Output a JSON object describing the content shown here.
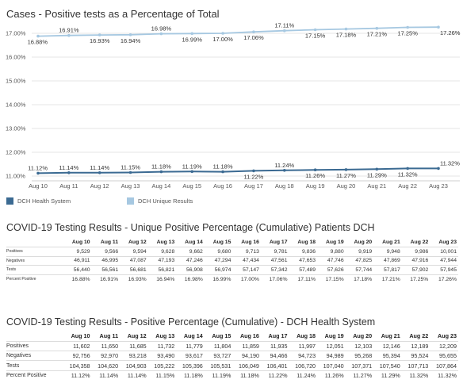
{
  "chart_data": {
    "type": "line",
    "title": "Cases - Positive tests as a Percentage of Total",
    "categories": [
      "Aug 10",
      "Aug 11",
      "Aug 12",
      "Aug 13",
      "Aug 14",
      "Aug 15",
      "Aug 16",
      "Aug 17",
      "Aug 18",
      "Aug 19",
      "Aug 20",
      "Aug 21",
      "Aug 22",
      "Aug 23"
    ],
    "yticks": [
      "17.00%",
      "16.00%",
      "15.00%",
      "14.00%",
      "13.00%",
      "12.00%",
      "11.00%"
    ],
    "series": [
      {
        "name": "DCH Unique Results",
        "color": "#a6c8e1",
        "values": [
          16.88,
          16.91,
          16.93,
          16.94,
          16.98,
          16.99,
          17.0,
          17.06,
          17.11,
          17.15,
          17.18,
          17.21,
          17.25,
          17.26
        ],
        "labels": [
          "16.88%",
          "16.91%",
          "16.93%",
          "16.94%",
          "16.98%",
          "16.99%",
          "17.00%",
          "17.06%",
          "17.11%",
          "17.15%",
          "17.18%",
          "17.21%",
          "17.25%",
          "17.26%"
        ]
      },
      {
        "name": "DCH Health System",
        "color": "#3b6a92",
        "values": [
          11.12,
          11.14,
          11.14,
          11.15,
          11.18,
          11.19,
          11.18,
          11.22,
          11.24,
          11.26,
          11.27,
          11.29,
          11.32,
          11.32
        ],
        "labels": [
          "11.12%",
          "11.14%",
          "11.14%",
          "11.15%",
          "11.18%",
          "11.19%",
          "11.18%",
          "11.22%",
          "11.24%",
          "11.26%",
          "11.27%",
          "11.29%",
          "11.32%",
          "11.32%"
        ]
      }
    ],
    "ylim": [
      10.8,
      17.4
    ],
    "legend_position": "bottom-left",
    "grid": true
  },
  "legend": {
    "health": "DCH Health System",
    "unique": "DCH Unique Results"
  },
  "table1": {
    "title": "COVID-19 Testing Results - Unique Positive Percentage (Cumulative) Patients DCH",
    "columns": [
      "Aug 10",
      "Aug 11",
      "Aug 12",
      "Aug 13",
      "Aug 14",
      "Aug 15",
      "Aug 16",
      "Aug 17",
      "Aug 18",
      "Aug 19",
      "Aug 20",
      "Aug 21",
      "Aug 22",
      "Aug 23"
    ],
    "rows": [
      {
        "label": "Positives",
        "values": [
          "9,529",
          "9,566",
          "9,594",
          "9,628",
          "9,662",
          "9,680",
          "9,713",
          "9,781",
          "9,836",
          "9,880",
          "9,919",
          "9,948",
          "9,986",
          "10,001"
        ]
      },
      {
        "label": "Negatives",
        "values": [
          "46,911",
          "46,995",
          "47,087",
          "47,193",
          "47,246",
          "47,294",
          "47,434",
          "47,561",
          "47,653",
          "47,746",
          "47,825",
          "47,869",
          "47,916",
          "47,944"
        ]
      },
      {
        "label": "Tests",
        "values": [
          "56,440",
          "56,561",
          "56,681",
          "56,821",
          "56,908",
          "56,974",
          "57,147",
          "57,342",
          "57,489",
          "57,626",
          "57,744",
          "57,817",
          "57,902",
          "57,945"
        ]
      },
      {
        "label": "Percent Positive",
        "values": [
          "16.88%",
          "16.91%",
          "16.93%",
          "16.94%",
          "16.98%",
          "16.99%",
          "17.00%",
          "17.06%",
          "17.11%",
          "17.15%",
          "17.18%",
          "17.21%",
          "17.25%",
          "17.26%"
        ]
      }
    ]
  },
  "table2": {
    "title": "COVID-19 Testing Results - Positive Percentage (Cumulative) - DCH Health System",
    "columns": [
      "Aug 10",
      "Aug 11",
      "Aug 12",
      "Aug 13",
      "Aug 14",
      "Aug 15",
      "Aug 16",
      "Aug 17",
      "Aug 18",
      "Aug 19",
      "Aug 20",
      "Aug 21",
      "Aug 22",
      "Aug 23"
    ],
    "rows": [
      {
        "label": "Positives",
        "values": [
          "11,602",
          "11,650",
          "11,685",
          "11,732",
          "11,779",
          "11,804",
          "11,859",
          "11,935",
          "11,997",
          "12,051",
          "12,103",
          "12,146",
          "12,189",
          "12,209"
        ]
      },
      {
        "label": "Negatives",
        "values": [
          "92,756",
          "92,970",
          "93,218",
          "93,490",
          "93,617",
          "93,727",
          "94,190",
          "94,466",
          "94,723",
          "94,989",
          "95,268",
          "95,394",
          "95,524",
          "95,655"
        ]
      },
      {
        "label": "Tests",
        "values": [
          "104,358",
          "104,620",
          "104,903",
          "105,222",
          "105,396",
          "105,531",
          "106,049",
          "106,401",
          "106,720",
          "107,040",
          "107,371",
          "107,540",
          "107,713",
          "107,864"
        ]
      },
      {
        "label": "Percent Positive",
        "values": [
          "11.12%",
          "11.14%",
          "11.14%",
          "11.15%",
          "11.18%",
          "11.19%",
          "11.18%",
          "11.22%",
          "11.24%",
          "11.26%",
          "11.27%",
          "11.29%",
          "11.32%",
          "11.32%"
        ]
      }
    ]
  }
}
